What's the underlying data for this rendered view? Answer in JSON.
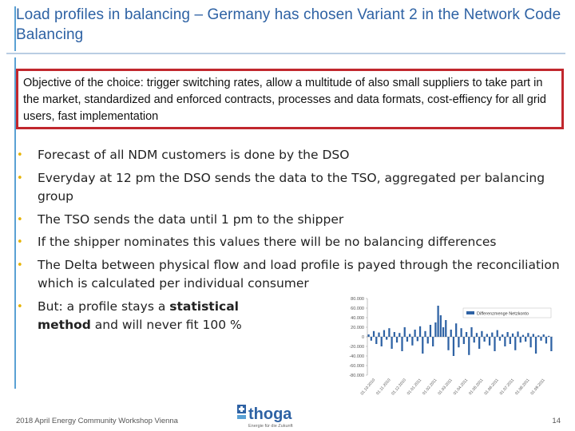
{
  "slide": {
    "title": "Load profiles in balancing – Germany has chosen Variant 2 in the Network Code Balancing",
    "objective": "Objective of the choice: trigger switching rates, allow a multitude of also small suppliers to take part in the market, standardized and enforced contracts, processes and data formats, cost-effiency for all grid users, fast implementation",
    "bullets": [
      {
        "text": "Forecast of all NDM customers is done by the DSO"
      },
      {
        "text": "Everyday at 12 pm the DSO sends the data to the TSO, aggregated per balancing group"
      },
      {
        "text": "The TSO sends the data until 1 pm to the shipper"
      },
      {
        "text": "If the shipper nominates this values there will be no balancing differences"
      },
      {
        "text": "The Delta between physical flow and load profile is payed through the reconciliation which is calculated per individual consumer"
      }
    ],
    "last_bullet": {
      "prefix": "But: a profile stays a ",
      "bold1": "statistical",
      "bold2": "method",
      "suffix": " and will never fit 100 %"
    },
    "footer": {
      "event": "2018 April Energy Community Workshop Vienna",
      "logo_text": "thoga",
      "logo_tagline": "Energie für die Zukunft",
      "page_number": "14"
    },
    "colors": {
      "title": "#2e62a4",
      "box_border": "#c1272d",
      "bullet": "#e6b300",
      "series": "#2e62a4"
    }
  },
  "chart_data": {
    "type": "bar",
    "legend": [
      "Differenzmenge Netzkonto"
    ],
    "legend_position": "top-right",
    "yticks": [
      "80.000",
      "60.000",
      "40.000",
      "20.000",
      "0",
      "-20.000",
      "-40.000",
      "-60.000",
      "-80.000"
    ],
    "ylim": [
      -80000,
      80000
    ],
    "xticks": [
      "01.10.2010",
      "01.11.2010",
      "01.12.2010",
      "01.01.2011",
      "01.02.2011",
      "01.03.2011",
      "01.04.2011",
      "01.05.2011",
      "01.06.2011",
      "01.07.2011",
      "01.08.2011",
      "01.09.2011"
    ],
    "series": [
      {
        "name": "Differenzmenge Netzkonto",
        "values": [
          5000,
          -8000,
          12000,
          -15000,
          9000,
          -20000,
          14000,
          -6000,
          18000,
          -25000,
          10000,
          -12000,
          8000,
          -30000,
          20000,
          -10000,
          6000,
          -18000,
          15000,
          -9000,
          22000,
          -35000,
          12000,
          -14000,
          25000,
          -20000,
          30000,
          65000,
          45000,
          20000,
          35000,
          -28000,
          15000,
          -40000,
          28000,
          -22000,
          18000,
          -15000,
          10000,
          -38000,
          20000,
          -12000,
          8000,
          -25000,
          12000,
          -10000,
          6000,
          -18000,
          9000,
          -30000,
          14000,
          -8000,
          5000,
          -20000,
          10000,
          -15000,
          7000,
          -28000,
          11000,
          -12000,
          4000,
          -10000,
          8000,
          -22000,
          6000,
          -35000,
          3000,
          -8000,
          5000,
          -14000,
          2000,
          -30000
        ]
      }
    ]
  }
}
